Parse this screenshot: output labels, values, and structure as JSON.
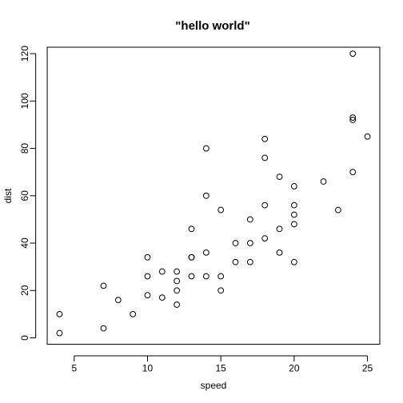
{
  "chart_data": {
    "type": "scatter",
    "title": "\"hello world\"",
    "xlabel": "speed",
    "ylabel": "dist",
    "xlim": [
      3.16,
      25.84
    ],
    "ylim": [
      -2.72,
      122.72
    ],
    "xticks": [
      5,
      10,
      15,
      20,
      25
    ],
    "yticks": [
      0,
      20,
      40,
      60,
      80,
      100,
      120
    ],
    "grid": false,
    "legend": "none",
    "x": [
      4,
      4,
      7,
      7,
      8,
      9,
      10,
      10,
      10,
      11,
      11,
      12,
      12,
      12,
      12,
      13,
      13,
      13,
      13,
      14,
      14,
      14,
      14,
      15,
      15,
      15,
      16,
      16,
      17,
      17,
      17,
      18,
      18,
      18,
      18,
      19,
      19,
      19,
      20,
      20,
      20,
      20,
      20,
      22,
      23,
      24,
      24,
      24,
      24,
      25
    ],
    "y": [
      2,
      10,
      4,
      22,
      16,
      10,
      18,
      26,
      34,
      17,
      28,
      14,
      20,
      24,
      28,
      26,
      34,
      34,
      46,
      26,
      36,
      60,
      80,
      20,
      26,
      54,
      32,
      40,
      32,
      40,
      50,
      42,
      56,
      76,
      84,
      36,
      46,
      68,
      32,
      48,
      52,
      56,
      64,
      66,
      54,
      70,
      92,
      93,
      120,
      85
    ]
  }
}
